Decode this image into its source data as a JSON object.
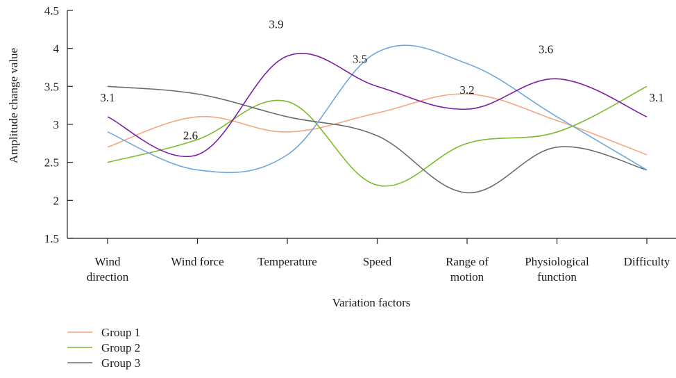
{
  "chart_data": {
    "type": "line",
    "xlabel": "Variation factors",
    "ylabel": "Amplitude change value",
    "ylim": [
      1.5,
      4.5
    ],
    "yticks": [
      "1.5",
      "2",
      "2.5",
      "3",
      "3.5",
      "4",
      "4.5"
    ],
    "categories": [
      [
        "Wind",
        "direction"
      ],
      [
        "Wind force"
      ],
      [
        "Temperature"
      ],
      [
        "Speed"
      ],
      [
        "Range of",
        "motion"
      ],
      [
        "Physiological",
        "function"
      ],
      [
        "Difficulty"
      ]
    ],
    "series": [
      {
        "name": "Group 1",
        "color": "#f4a582",
        "points": [
          [
            0.5,
            2.7
          ],
          [
            1.5,
            3.1
          ],
          [
            2.5,
            2.9
          ],
          [
            3.5,
            3.15
          ],
          [
            4.5,
            3.4
          ],
          [
            5.5,
            3.05
          ],
          [
            6.5,
            2.6
          ]
        ]
      },
      {
        "name": "Group 2",
        "color": "#7dbb2e",
        "points": [
          [
            0.5,
            2.5
          ],
          [
            1.5,
            2.8
          ],
          [
            2.5,
            3.3
          ],
          [
            3.5,
            2.2
          ],
          [
            4.5,
            2.75
          ],
          [
            5.5,
            2.9
          ],
          [
            6.5,
            3.5
          ]
        ]
      },
      {
        "name": "Group 3",
        "color": "#666e6e",
        "points": [
          [
            0.5,
            3.5
          ],
          [
            1.5,
            3.4
          ],
          [
            2.5,
            3.1
          ],
          [
            3.5,
            2.85
          ],
          [
            4.5,
            2.1
          ],
          [
            5.5,
            2.7
          ],
          [
            6.5,
            2.4
          ]
        ]
      },
      {
        "name": "",
        "color": "#6fa8dc",
        "points": [
          [
            0.5,
            2.9
          ],
          [
            1.5,
            2.4
          ],
          [
            2.5,
            2.6
          ],
          [
            3.5,
            3.95
          ],
          [
            4.5,
            3.8
          ],
          [
            5.5,
            3.1
          ],
          [
            6.5,
            2.4
          ]
        ]
      },
      {
        "name": "",
        "color": "#7a1fa2",
        "points": [
          [
            0.5,
            3.1
          ],
          [
            1.5,
            2.6
          ],
          [
            2.5,
            3.9
          ],
          [
            3.5,
            3.5
          ],
          [
            4.5,
            3.2
          ],
          [
            5.5,
            3.6
          ],
          [
            6.5,
            3.1
          ]
        ]
      }
    ],
    "annotations": [
      {
        "text": "3.1",
        "x": 0.5,
        "y": 3.1
      },
      {
        "text": "2.6",
        "x": 1.5,
        "y": 2.6
      },
      {
        "text": "3.9",
        "x": 2.5,
        "y": 3.9
      },
      {
        "text": "3.5",
        "x": 3.5,
        "y": 3.5
      },
      {
        "text": "3.2",
        "x": 4.5,
        "y": 3.2
      },
      {
        "text": "3.6",
        "x": 5.5,
        "y": 3.6
      },
      {
        "text": "3.1",
        "x": 6.5,
        "y": 3.1
      }
    ],
    "legend": {
      "position": "bottom-left",
      "entries": [
        "Group 1",
        "Group 2",
        "Group 3"
      ]
    }
  }
}
